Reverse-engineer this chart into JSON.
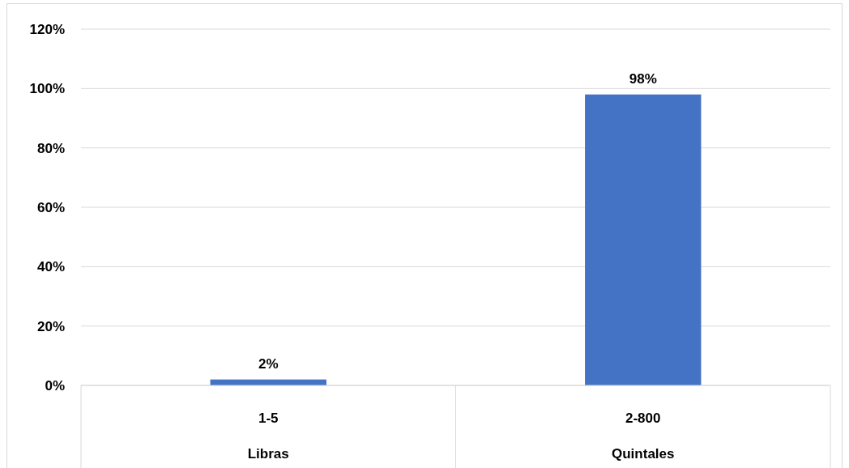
{
  "chart_data": {
    "type": "bar",
    "categories": [
      "1-5",
      "2-800"
    ],
    "values": [
      2,
      98
    ],
    "color": "#4472c4",
    "ylim": [
      0,
      120
    ],
    "yticks": [
      {
        "value": 0,
        "label": "0%"
      },
      {
        "value": 20,
        "label": "20%"
      },
      {
        "value": 40,
        "label": "40%"
      },
      {
        "value": 60,
        "label": "60%"
      },
      {
        "value": 80,
        "label": "80%"
      },
      {
        "value": 100,
        "label": "100%"
      },
      {
        "value": 120,
        "label": "120%"
      }
    ],
    "value_labels": [
      "2%",
      "98%"
    ],
    "annotations": [
      "Libras",
      "Quintales"
    ],
    "grid": "y"
  }
}
